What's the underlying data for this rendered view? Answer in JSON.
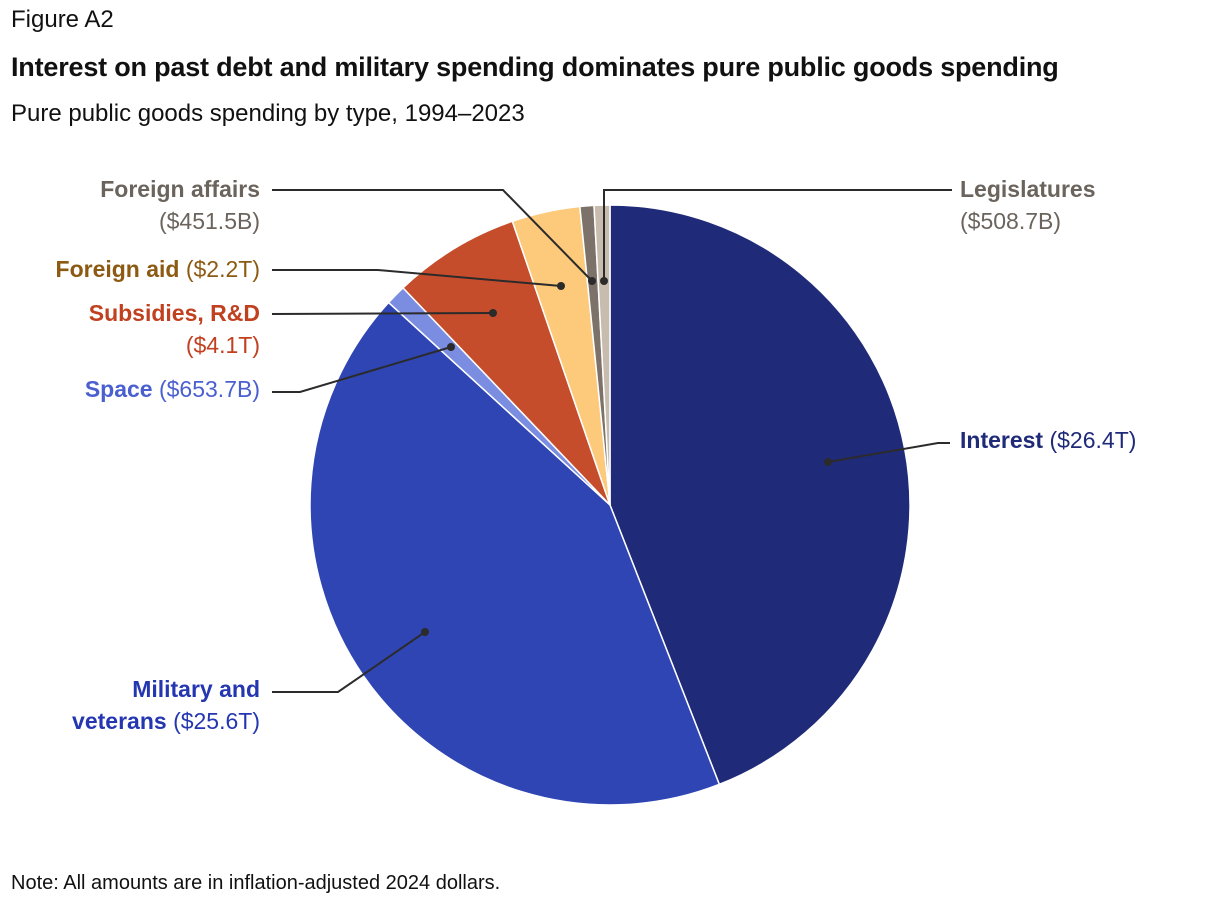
{
  "figure_label": "Figure A2",
  "title": "Interest on past debt and military spending dominates pure public goods spending",
  "subtitle": "Pure public goods spending by type, 1994–2023",
  "note": "Note: All amounts are in inflation-adjusted 2024 dollars.",
  "chart_data": {
    "type": "pie",
    "unit": "billions of 2024 dollars",
    "start": "12 o'clock, clockwise",
    "slices": [
      {
        "name": "Interest",
        "value_label": "($26.4T)",
        "value": 26400,
        "color": "#1f2a78",
        "label_color": "#1f2a78"
      },
      {
        "name": "Military and veterans",
        "name_line1": "Military and",
        "name_line2": "veterans",
        "value_label": "($25.6T)",
        "value": 25600,
        "color": "#2e45b3",
        "label_color": "#2437b0"
      },
      {
        "name": "Space",
        "value_label": "($653.7B)",
        "value": 653.7,
        "color": "#7b8de0",
        "label_color": "#4a5fd0"
      },
      {
        "name": "Subsidies, R&D",
        "value_label": "($4.1T)",
        "value": 4100,
        "color": "#c64d2c",
        "label_color": "#c0401f"
      },
      {
        "name": "Foreign aid",
        "value_label": "($2.2T)",
        "value": 2200,
        "color": "#fdc97b",
        "label_color": "#8c5a12"
      },
      {
        "name": "Foreign affairs",
        "value_label": "($451.5B)",
        "value": 451.5,
        "color": "#7d7269",
        "label_color": "#6b645d"
      },
      {
        "name": "Legislatures",
        "value_label": "($508.7B)",
        "value": 508.7,
        "color": "#c8bcae",
        "label_color": "#6b645d"
      }
    ]
  }
}
